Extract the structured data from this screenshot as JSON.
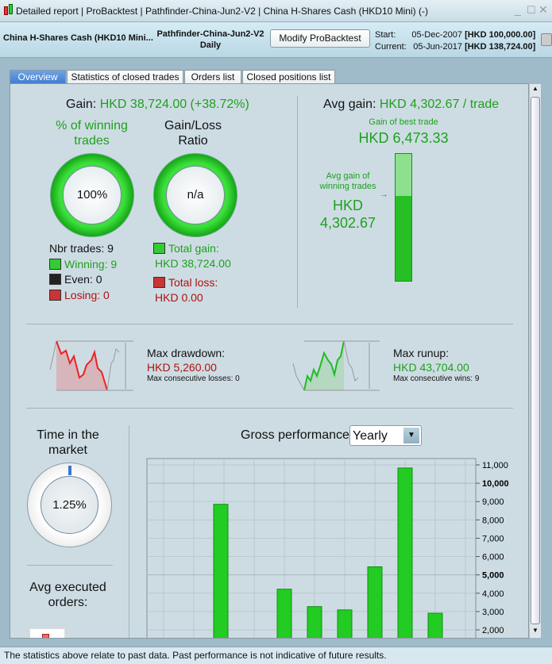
{
  "titlebar": {
    "breadcrumbs": [
      "Detailed report",
      "ProBacktest",
      "Pathfinder-China-Jun2-V2",
      "China H-Shares Cash (HKD10 Mini) (-)"
    ]
  },
  "header": {
    "instrument": "China H-Shares Cash (HKD10 Mini...",
    "strategy": "Pathfinder-China-Jun2-V2",
    "timeframe": "Daily",
    "modify_button": "Modify ProBacktest",
    "start_label": "Start:",
    "start_date": "05-Dec-2007",
    "start_capital": "[HKD 100,000.00]",
    "current_label": "Current:",
    "current_date": "05-Jun-2017",
    "current_capital": "[HKD 138,724.00]"
  },
  "tabs": [
    "Overview",
    "Statistics of closed trades",
    "Orders list",
    "Closed positions list"
  ],
  "overview": {
    "gain_label": "Gain:",
    "gain_value": "HKD 38,724.00 (+38.72%)",
    "winning_title": "% of winning trades",
    "winning_pct": "100%",
    "winning_fraction": 1.0,
    "ratio_title": "Gain/Loss Ratio",
    "ratio_value": "n/a",
    "nbr_trades": "Nbr trades: 9",
    "winning": "Winning: 9",
    "even": "Even: 0",
    "losing": "Losing: 0",
    "total_gain_label": "Total gain:",
    "total_gain": "HKD 38,724.00",
    "total_loss_label": "Total loss:",
    "total_loss": "HKD 0.00",
    "avg_gain_label": "Avg gain:",
    "avg_gain_value": "HKD 4,302.67 / trade",
    "best_trade_label": "Gain of best trade",
    "best_trade": "HKD 6,473.33",
    "avg_win_label": "Avg gain of winning trades",
    "avg_win_currency": "HKD",
    "avg_win_value": "4,302.67",
    "drawdown_label": "Max drawdown:",
    "drawdown_value": "HKD 5,260.00",
    "max_losses": "Max consecutive losses: 0",
    "runup_label": "Max runup:",
    "runup_value": "HKD 43,704.00",
    "max_wins": "Max consecutive wins: 9",
    "time_title": "Time in the market",
    "time_pct": "1.25%",
    "time_fraction": 0.0125,
    "avg_orders_title": "Avg executed orders:",
    "gross_label": "Gross performance",
    "period_select": "Yearly"
  },
  "colors": {
    "gain": "#1fa01f",
    "loss": "#b01010",
    "bar": "#22cc22"
  },
  "chart_data": {
    "type": "bar",
    "title": "Gross performance",
    "values": [
      null,
      null,
      8850,
      null,
      4220,
      3270,
      3090,
      5440,
      10830,
      2910
    ],
    "ylim": [
      1500,
      11700
    ],
    "yticks": [
      "11,000",
      "10,000",
      "9,000",
      "8,000",
      "7,000",
      "6,000",
      "5,000",
      "4,000",
      "3,000",
      "2,000"
    ],
    "grid": true,
    "axis": "right"
  },
  "status": "The statistics above relate to past data. Past performance is not indicative of future results."
}
